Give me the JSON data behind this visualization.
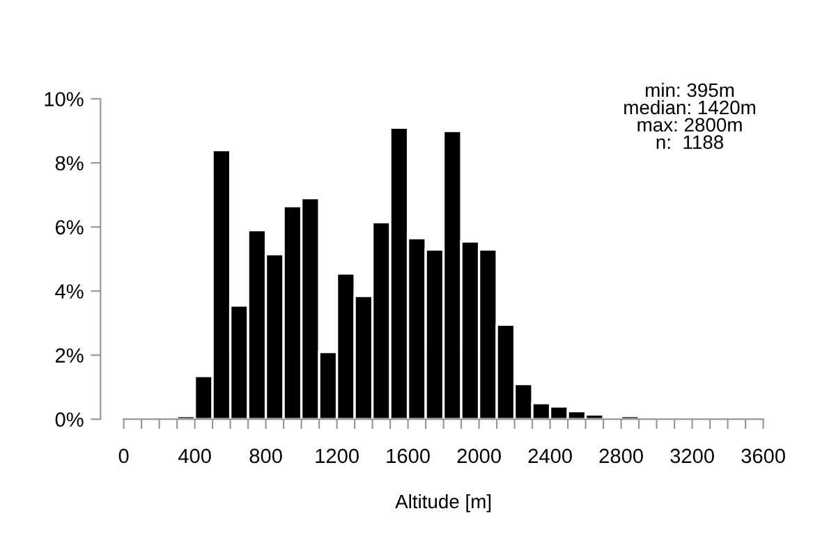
{
  "chart_data": {
    "type": "histogram",
    "xlabel": "Altitude [m]",
    "bins": [
      0,
      100,
      200,
      300,
      400,
      500,
      600,
      700,
      800,
      900,
      1000,
      1100,
      1200,
      1300,
      1400,
      1500,
      1600,
      1700,
      1800,
      1900,
      2000,
      2100,
      2200,
      2300,
      2400,
      2500,
      2600,
      2700,
      2800,
      2900,
      3000,
      3100,
      3200,
      3300,
      3400,
      3500,
      3600
    ],
    "values": [
      0,
      0,
      0,
      0.1,
      1.35,
      8.4,
      3.55,
      5.9,
      5.15,
      6.65,
      6.9,
      2.1,
      4.55,
      3.85,
      6.15,
      9.1,
      5.65,
      5.3,
      9.0,
      5.55,
      5.3,
      2.95,
      1.1,
      0.5,
      0.4,
      0.25,
      0.15,
      0,
      0.1,
      0,
      0,
      0,
      0,
      0,
      0,
      0
    ],
    "color": "#000000",
    "xlim": [
      0,
      3600
    ],
    "xticks": [
      0,
      {
        "value": 100,
        "label": null
      },
      {
        "value": 200,
        "label": null
      },
      {
        "value": 300,
        "label": null
      },
      400,
      {
        "value": 500,
        "label": null
      },
      {
        "value": 600,
        "label": null
      },
      {
        "value": 700,
        "label": null
      },
      800,
      {
        "value": 900,
        "label": null
      },
      {
        "value": 1000,
        "label": null
      },
      {
        "value": 1100,
        "label": null
      },
      1200,
      {
        "value": 1300,
        "label": null
      },
      {
        "value": 1400,
        "label": null
      },
      {
        "value": 1500,
        "label": null
      },
      1600,
      {
        "value": 1700,
        "label": null
      },
      {
        "value": 1800,
        "label": null
      },
      {
        "value": 1900,
        "label": null
      },
      2000,
      {
        "value": 2100,
        "label": null
      },
      {
        "value": 2200,
        "label": null
      },
      {
        "value": 2300,
        "label": null
      },
      2400,
      {
        "value": 2500,
        "label": null
      },
      {
        "value": 2600,
        "label": null
      },
      {
        "value": 2700,
        "label": null
      },
      2800,
      {
        "value": 2900,
        "label": null
      },
      {
        "value": 3000,
        "label": null
      },
      {
        "value": 3100,
        "label": null
      },
      3200,
      {
        "value": 3300,
        "label": null
      },
      {
        "value": 3400,
        "label": null
      },
      {
        "value": 3500,
        "label": null
      },
      3600
    ],
    "ylim": [
      0,
      10
    ],
    "yticks": [
      {
        "value": 0,
        "label": "0%"
      },
      {
        "value": 2,
        "label": "2%"
      },
      {
        "value": 4,
        "label": "4%"
      },
      {
        "value": 6,
        "label": "6%"
      },
      {
        "value": 8,
        "label": "8%"
      },
      {
        "value": 10,
        "label": "10%"
      }
    ],
    "annotations": [
      "min: 395m\nmedian: 1420m\nmax: 2800m\nn:  1188"
    ],
    "grid": false
  }
}
